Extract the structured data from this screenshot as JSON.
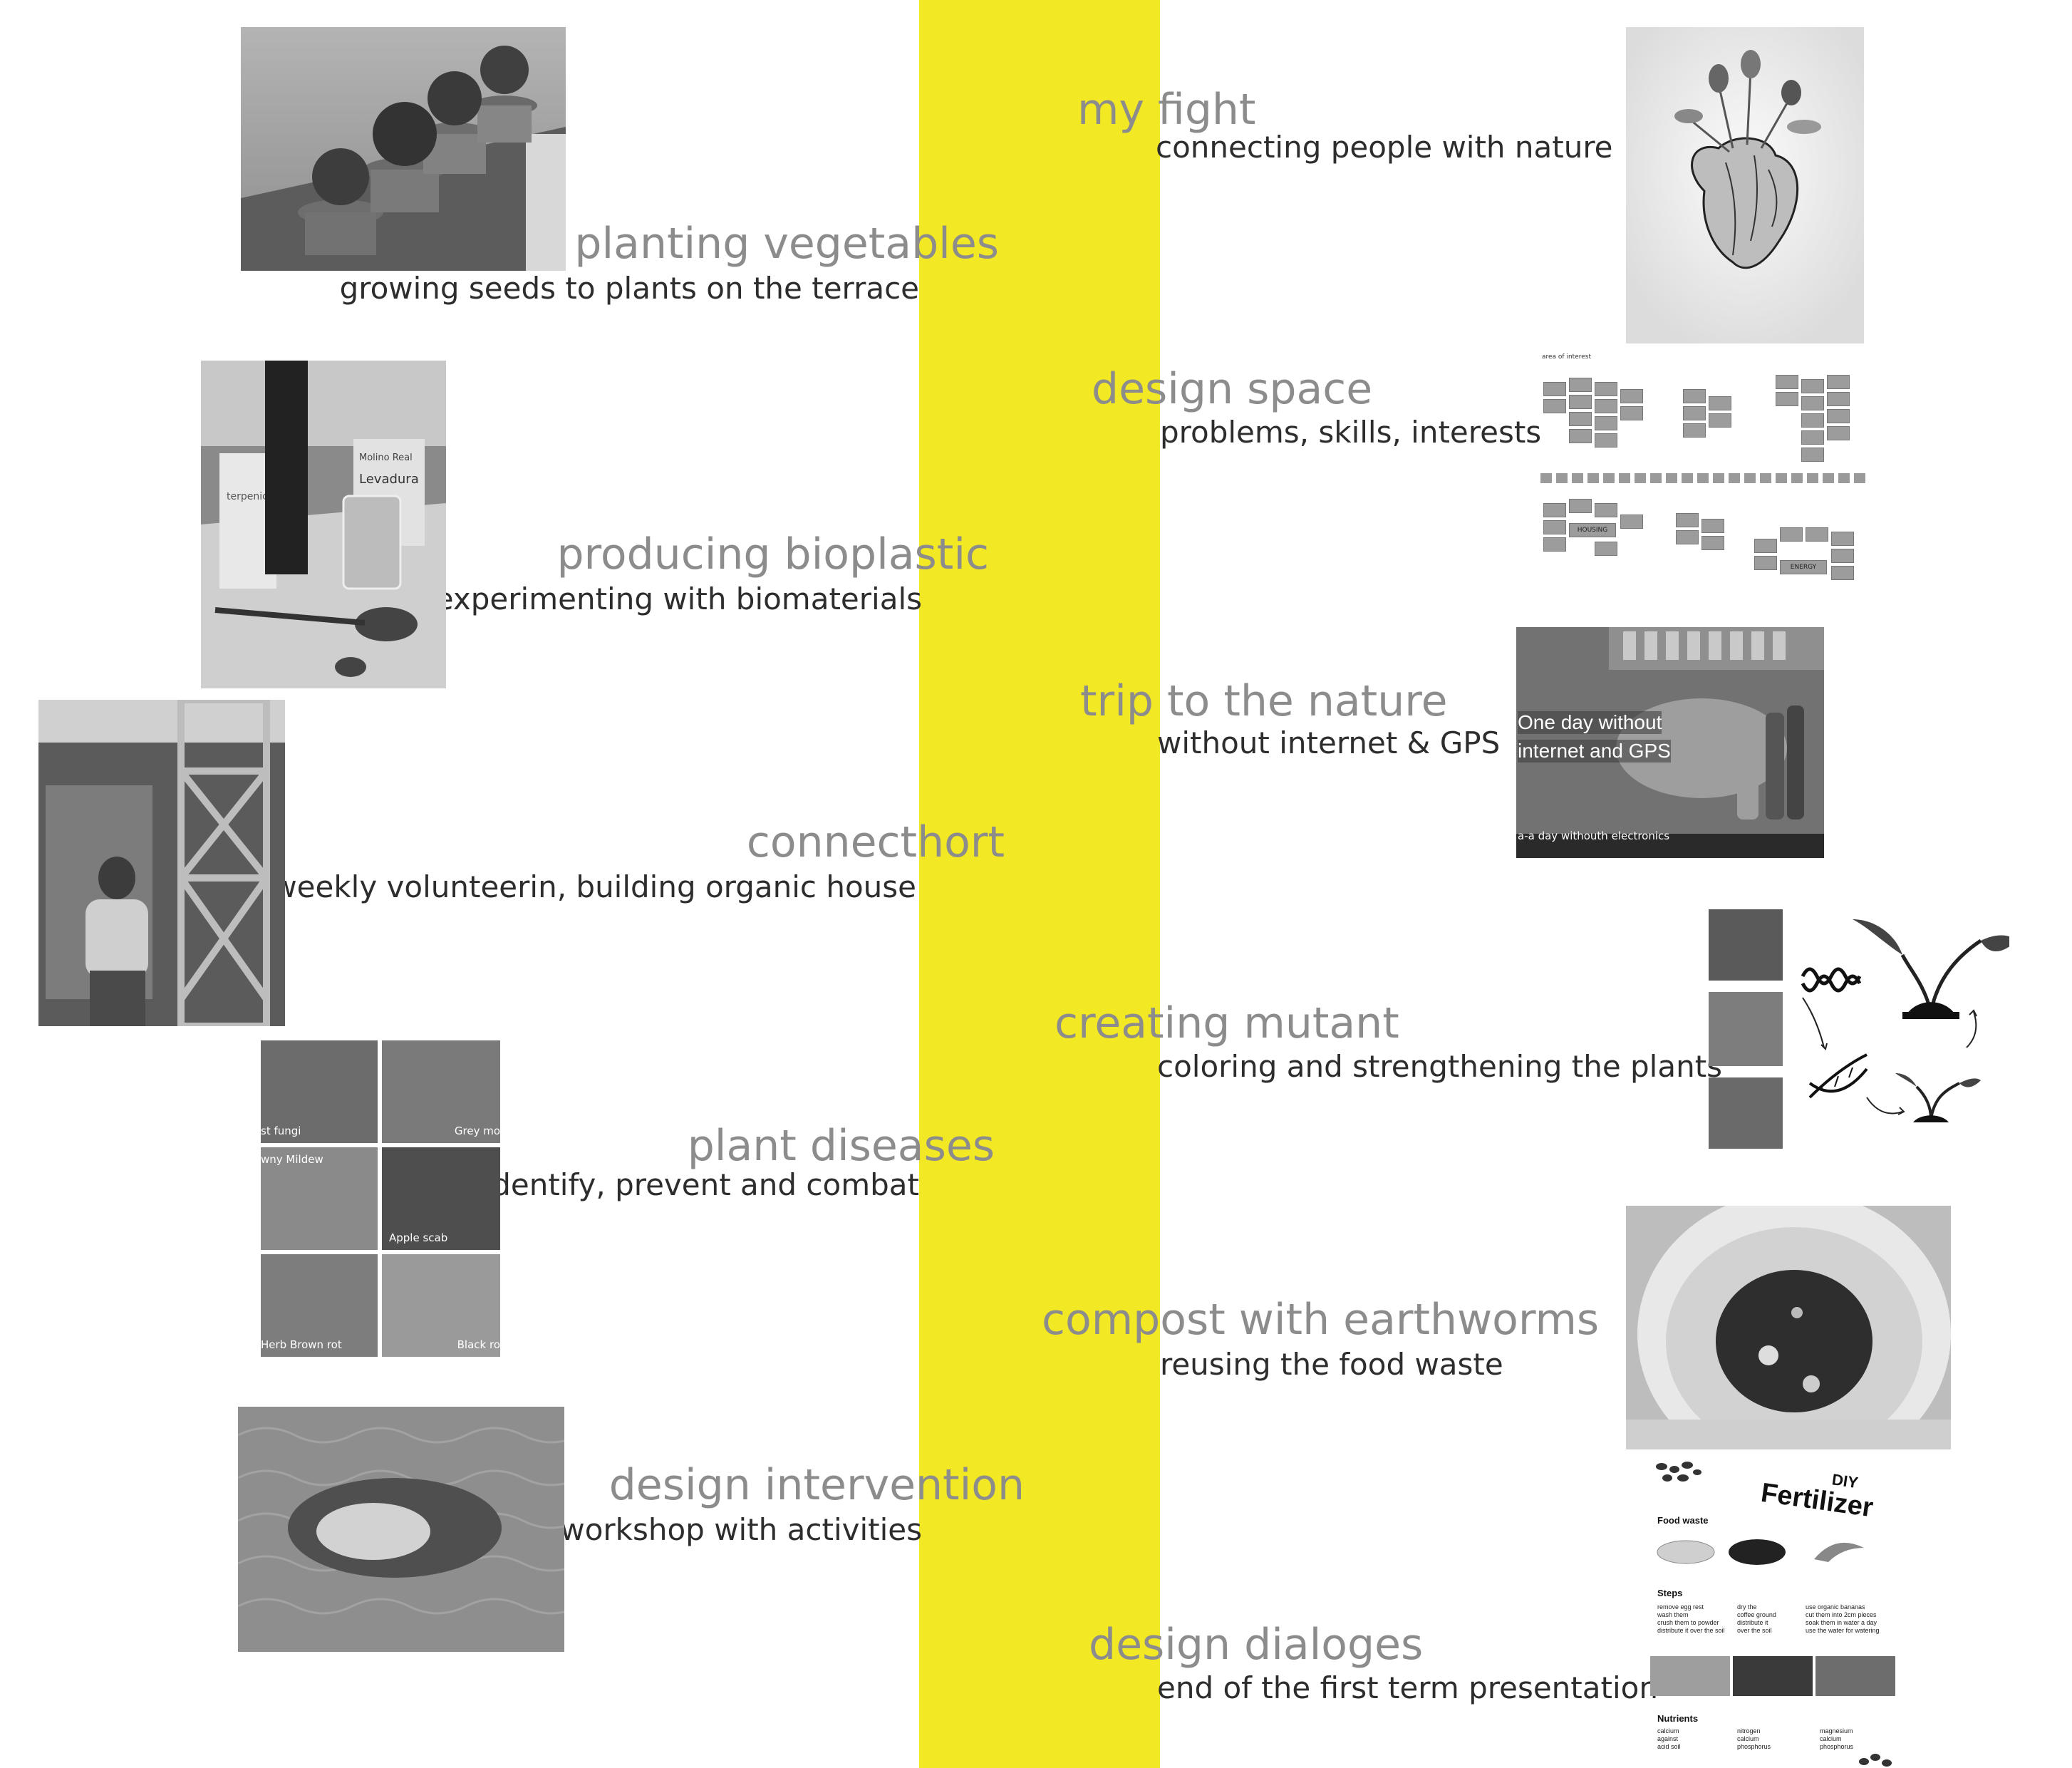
{
  "colors": {
    "spine": "#f2e824",
    "title": "#8c8c8c",
    "subtitle": "#2d2d2d"
  },
  "left_entries": [
    {
      "title": "planting vegetables",
      "subtitle": "growing seeds to plants on the terrace"
    },
    {
      "title": "producing bioplastic",
      "subtitle": "experimenting with biomaterials"
    },
    {
      "title": "connecthort",
      "subtitle": "weekly volunteerin, building organic house"
    },
    {
      "title": "plant diseases",
      "subtitle": "identify, prevent and combat"
    },
    {
      "title": "design intervention",
      "subtitle": "workshop with activities"
    }
  ],
  "right_entries": [
    {
      "title": "my fight",
      "subtitle": "connecting people with nature"
    },
    {
      "title": "design space",
      "subtitle": "problems, skills, interests"
    },
    {
      "title": "trip to the nature",
      "subtitle": "without internet & GPS"
    },
    {
      "title": "creating mutant",
      "subtitle": "coloring and strengthening the plants"
    },
    {
      "title": "compost with earthworms",
      "subtitle": "reusing the food waste"
    },
    {
      "title": "design dialoges",
      "subtitle": "end of the first term presentation"
    }
  ],
  "images": {
    "bioplastic": {
      "box1": "terpenic",
      "box2_a": "Molino Real",
      "box2_b": "Levadura"
    },
    "diseases": {
      "captions": [
        "st fungi",
        "Grey mo",
        "wny Mildew",
        "Apple scab",
        "Herb Brown rot",
        "Black ro"
      ]
    },
    "design_space": {
      "header": "area of interest",
      "labels": [
        "HOUSING",
        "ENERGY"
      ]
    },
    "trip": {
      "line1": "One day without",
      "line2": "internet and GPS",
      "caption": "a-a day withouth electronics"
    },
    "fertilizer": {
      "title_small": "DIY",
      "title_big": "Fertilizer",
      "food_waste": "Food waste",
      "steps": "Steps",
      "step_cols": [
        [
          "remove egg rest",
          "wash them",
          "crush them to powder",
          "distribute it over the soil"
        ],
        [
          "dry the",
          "coffee ground",
          "distribute it",
          "over the soil"
        ],
        [
          "use organic bananas",
          "cut them into 2cm pieces",
          "soak them in water a day",
          "use the water for watering"
        ]
      ],
      "nutrients": "Nutrients",
      "nutrient_cols": [
        [
          "calcium",
          "against",
          "acid soil"
        ],
        [
          "nitrogen",
          "calcium",
          "phosphorus"
        ],
        [
          "magnesium",
          "calcium",
          "phosphorus"
        ]
      ]
    }
  }
}
